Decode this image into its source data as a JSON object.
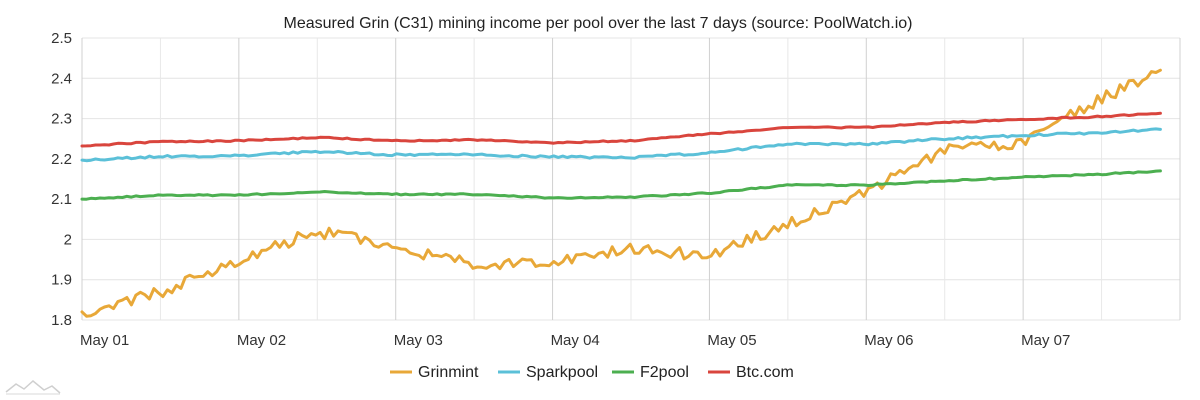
{
  "chart_data": {
    "type": "line",
    "title": "Measured Grin (C31) mining income per pool over the last 7 days (source: PoolWatch.io)",
    "xlabel": "",
    "ylabel": "",
    "x_tick_labels": [
      "May 01",
      "May 02",
      "May 03",
      "May 04",
      "May 05",
      "May 06",
      "May 07"
    ],
    "x": [
      "2019-05-01 00:00",
      "2019-05-01 12:00",
      "2019-05-02 00:00",
      "2019-05-02 12:00",
      "2019-05-03 00:00",
      "2019-05-03 12:00",
      "2019-05-04 00:00",
      "2019-05-04 12:00",
      "2019-05-05 00:00",
      "2019-05-05 12:00",
      "2019-05-06 00:00",
      "2019-05-06 12:00",
      "2019-05-07 00:00",
      "2019-05-07 12:00",
      "2019-05-07 21:00"
    ],
    "ylim": [
      1.8,
      2.5
    ],
    "y_ticks": [
      "1.8",
      "1.9",
      "2",
      "2.1",
      "2.2",
      "2.3",
      "2.4",
      "2.5"
    ],
    "grid": true,
    "legend_position": "bottom",
    "series": [
      {
        "name": "Grinmint",
        "color": "#e8a838",
        "values": [
          1.82,
          1.87,
          1.95,
          2.02,
          1.98,
          1.94,
          1.94,
          1.98,
          1.96,
          2.04,
          2.12,
          2.22,
          2.24,
          2.35,
          2.42
        ]
      },
      {
        "name": "Sparkpool",
        "color": "#5bc0d8",
        "values": [
          2.197,
          2.206,
          2.208,
          2.218,
          2.21,
          2.21,
          2.205,
          2.203,
          2.215,
          2.237,
          2.237,
          2.25,
          2.258,
          2.265,
          2.273
        ]
      },
      {
        "name": "F2pool",
        "color": "#4caf50",
        "values": [
          2.1,
          2.11,
          2.11,
          2.118,
          2.112,
          2.112,
          2.103,
          2.105,
          2.115,
          2.135,
          2.135,
          2.145,
          2.155,
          2.162,
          2.17
        ]
      },
      {
        "name": "Btc.com",
        "color": "#d9453d",
        "values": [
          2.232,
          2.243,
          2.245,
          2.253,
          2.245,
          2.247,
          2.24,
          2.245,
          2.262,
          2.278,
          2.278,
          2.29,
          2.298,
          2.305,
          2.313
        ]
      }
    ]
  }
}
